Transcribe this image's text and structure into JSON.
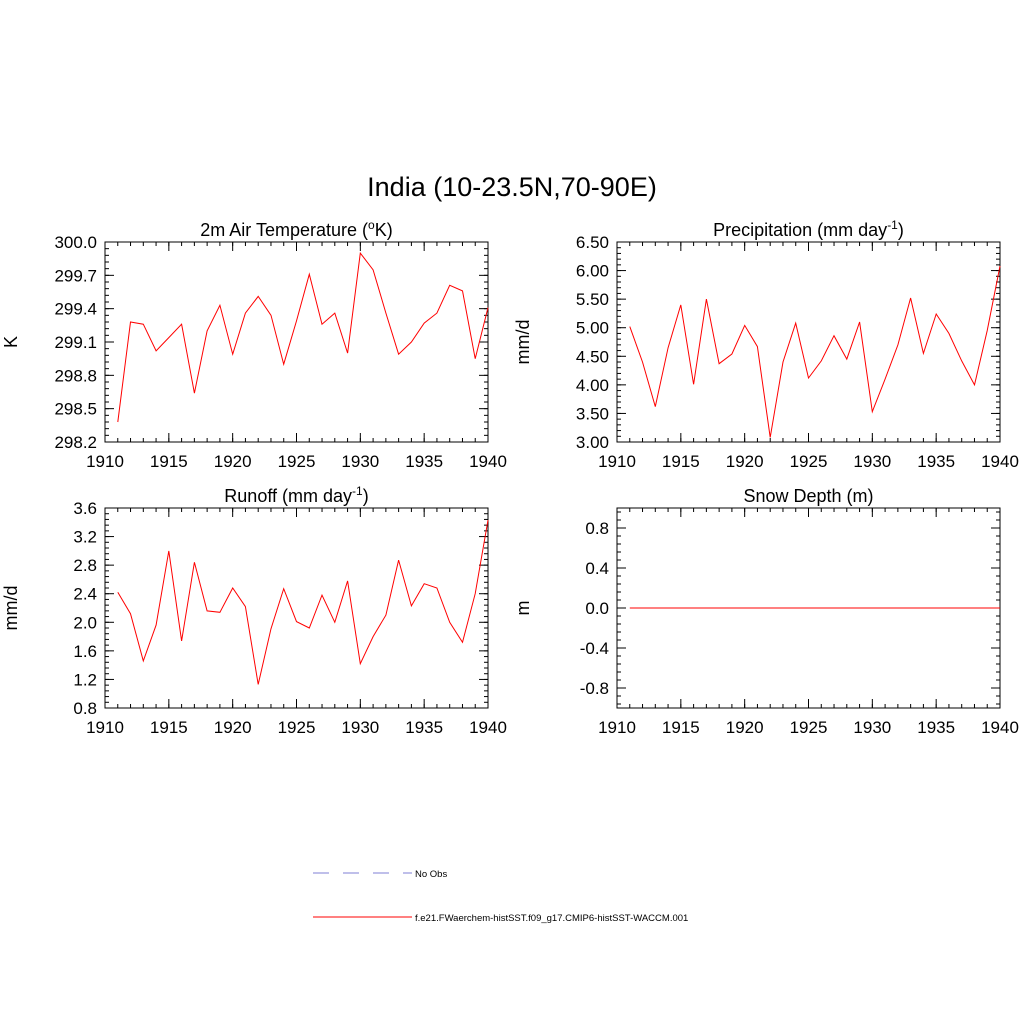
{
  "title": "India (10-23.5N,70-90E)",
  "colors": {
    "model": "#ff0000",
    "obs": "#9999dd",
    "axis": "#000000"
  },
  "legend": {
    "obs_label": "No Obs",
    "model_label": "f.e21.FWaerchem-histSST.f09_g17.CMIP6-histSST-WACCM.001"
  },
  "chart_data": [
    {
      "type": "line",
      "title": "2m Air Temperature (",
      "title_sup_pre": "o",
      "title_after": "K)",
      "title_sup": "",
      "title_end": "",
      "ylabel": "K",
      "xlim": [
        1910,
        1940
      ],
      "ylim": [
        298.2,
        300.0
      ],
      "yticks": [
        "298.2",
        "298.5",
        "298.8",
        "299.1",
        "299.4",
        "299.7",
        "300.0"
      ],
      "xticks": [
        "1910",
        "1915",
        "1920",
        "1925",
        "1930",
        "1935",
        "1940"
      ],
      "x": [
        1911,
        1912,
        1913,
        1914,
        1915,
        1916,
        1917,
        1918,
        1919,
        1920,
        1921,
        1922,
        1923,
        1924,
        1925,
        1926,
        1927,
        1928,
        1929,
        1930,
        1931,
        1932,
        1933,
        1934,
        1935,
        1936,
        1937,
        1938,
        1939,
        1940
      ],
      "series": [
        {
          "values": [
            298.38,
            299.28,
            299.26,
            299.02,
            299.14,
            299.26,
            298.64,
            299.2,
            299.43,
            298.99,
            299.36,
            299.51,
            299.34,
            298.9,
            299.29,
            299.71,
            299.26,
            299.36,
            299.0,
            299.9,
            299.75,
            299.36,
            298.99,
            299.1,
            299.27,
            299.36,
            299.61,
            299.56,
            298.95,
            299.41
          ]
        }
      ]
    },
    {
      "type": "line",
      "title": "Precipitation (mm day",
      "title_sup_pre": "",
      "title_after": "",
      "title_sup": "-1",
      "title_end": ")",
      "ylabel": "mm/d",
      "xlim": [
        1910,
        1940
      ],
      "ylim": [
        3.0,
        6.5
      ],
      "yticks": [
        "3.00",
        "3.50",
        "4.00",
        "4.50",
        "5.00",
        "5.50",
        "6.00",
        "6.50"
      ],
      "xticks": [
        "1910",
        "1915",
        "1920",
        "1925",
        "1930",
        "1935",
        "1940"
      ],
      "x": [
        1911,
        1912,
        1913,
        1914,
        1915,
        1916,
        1917,
        1918,
        1919,
        1920,
        1921,
        1922,
        1923,
        1924,
        1925,
        1926,
        1927,
        1928,
        1929,
        1930,
        1931,
        1932,
        1933,
        1934,
        1935,
        1936,
        1937,
        1938,
        1939,
        1940
      ],
      "series": [
        {
          "values": [
            5.02,
            4.4,
            3.62,
            4.65,
            5.4,
            4.01,
            5.5,
            4.37,
            4.54,
            5.04,
            4.67,
            3.08,
            4.4,
            5.08,
            4.12,
            4.42,
            4.86,
            4.45,
            5.1,
            3.53,
            4.1,
            4.7,
            5.52,
            4.55,
            5.24,
            4.9,
            4.42,
            4.0,
            4.95,
            6.08
          ]
        }
      ]
    },
    {
      "type": "line",
      "title": "Runoff (mm day",
      "title_sup_pre": "",
      "title_after": "",
      "title_sup": "-1",
      "title_end": ")",
      "ylabel": "mm/d",
      "xlim": [
        1910,
        1940
      ],
      "ylim": [
        0.8,
        3.6
      ],
      "yticks": [
        "0.8",
        "1.2",
        "1.6",
        "2.0",
        "2.4",
        "2.8",
        "3.2",
        "3.6"
      ],
      "xticks": [
        "1910",
        "1915",
        "1920",
        "1925",
        "1930",
        "1935",
        "1940"
      ],
      "x": [
        1911,
        1912,
        1913,
        1914,
        1915,
        1916,
        1917,
        1918,
        1919,
        1920,
        1921,
        1922,
        1923,
        1924,
        1925,
        1926,
        1927,
        1928,
        1929,
        1930,
        1931,
        1932,
        1933,
        1934,
        1935,
        1936,
        1937,
        1938,
        1939,
        1940
      ],
      "series": [
        {
          "values": [
            2.42,
            2.12,
            1.46,
            1.96,
            3.0,
            1.74,
            2.84,
            2.16,
            2.14,
            2.48,
            2.22,
            1.13,
            1.91,
            2.47,
            2.01,
            1.92,
            2.38,
            2.0,
            2.58,
            1.42,
            1.8,
            2.1,
            2.87,
            2.23,
            2.54,
            2.48,
            2.0,
            1.72,
            2.4,
            3.43
          ]
        }
      ]
    },
    {
      "type": "line",
      "title": "Snow Depth (m)",
      "title_sup_pre": "",
      "title_after": "",
      "title_sup": "",
      "title_end": "",
      "ylabel": "m",
      "xlim": [
        1910,
        1940
      ],
      "ylim": [
        -1.0,
        1.0
      ],
      "yticks": [
        "-0.8",
        "-0.4",
        "0.0",
        "0.4",
        "0.8"
      ],
      "xticks": [
        "1910",
        "1915",
        "1920",
        "1925",
        "1930",
        "1935",
        "1940"
      ],
      "x": [
        1911,
        1912,
        1913,
        1914,
        1915,
        1916,
        1917,
        1918,
        1919,
        1920,
        1921,
        1922,
        1923,
        1924,
        1925,
        1926,
        1927,
        1928,
        1929,
        1930,
        1931,
        1932,
        1933,
        1934,
        1935,
        1936,
        1937,
        1938,
        1939,
        1940
      ],
      "series": [
        {
          "values": [
            0,
            0,
            0,
            0,
            0,
            0,
            0,
            0,
            0,
            0,
            0,
            0,
            0,
            0,
            0,
            0,
            0,
            0,
            0,
            0,
            0,
            0,
            0,
            0,
            0,
            0,
            0,
            0,
            0,
            0
          ]
        }
      ]
    }
  ]
}
